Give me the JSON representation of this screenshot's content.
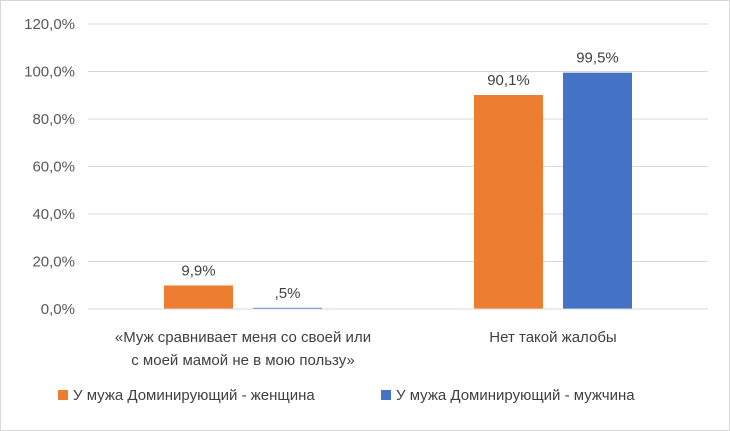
{
  "chart_data": {
    "type": "bar",
    "categories": [
      [
        "«Муж сравнивает меня со своей или",
        "с моей мамой не в мою пользу»"
      ],
      [
        "Нет такой жалобы"
      ]
    ],
    "series": [
      {
        "name": "У мужа Доминирующий - женщина",
        "color": "#ED7D31",
        "values": [
          9.9,
          90.1
        ],
        "labels": [
          "9,9%",
          "90,1%"
        ]
      },
      {
        "name": "У мужа Доминирующий - мужчина",
        "color": "#4472C4",
        "values": [
          0.5,
          99.5
        ],
        "labels": [
          ",5%",
          "99,5%"
        ]
      }
    ],
    "yticks": [
      {
        "value": 0,
        "label": "0,0%"
      },
      {
        "value": 20,
        "label": "20,0%"
      },
      {
        "value": 40,
        "label": "40,0%"
      },
      {
        "value": 60,
        "label": "60,0%"
      },
      {
        "value": 80,
        "label": "80,0%"
      },
      {
        "value": 100,
        "label": "100,0%"
      },
      {
        "value": 120,
        "label": "120,0%"
      }
    ],
    "ylim": [
      0,
      120
    ],
    "grid": true,
    "legend_position": "bottom"
  }
}
